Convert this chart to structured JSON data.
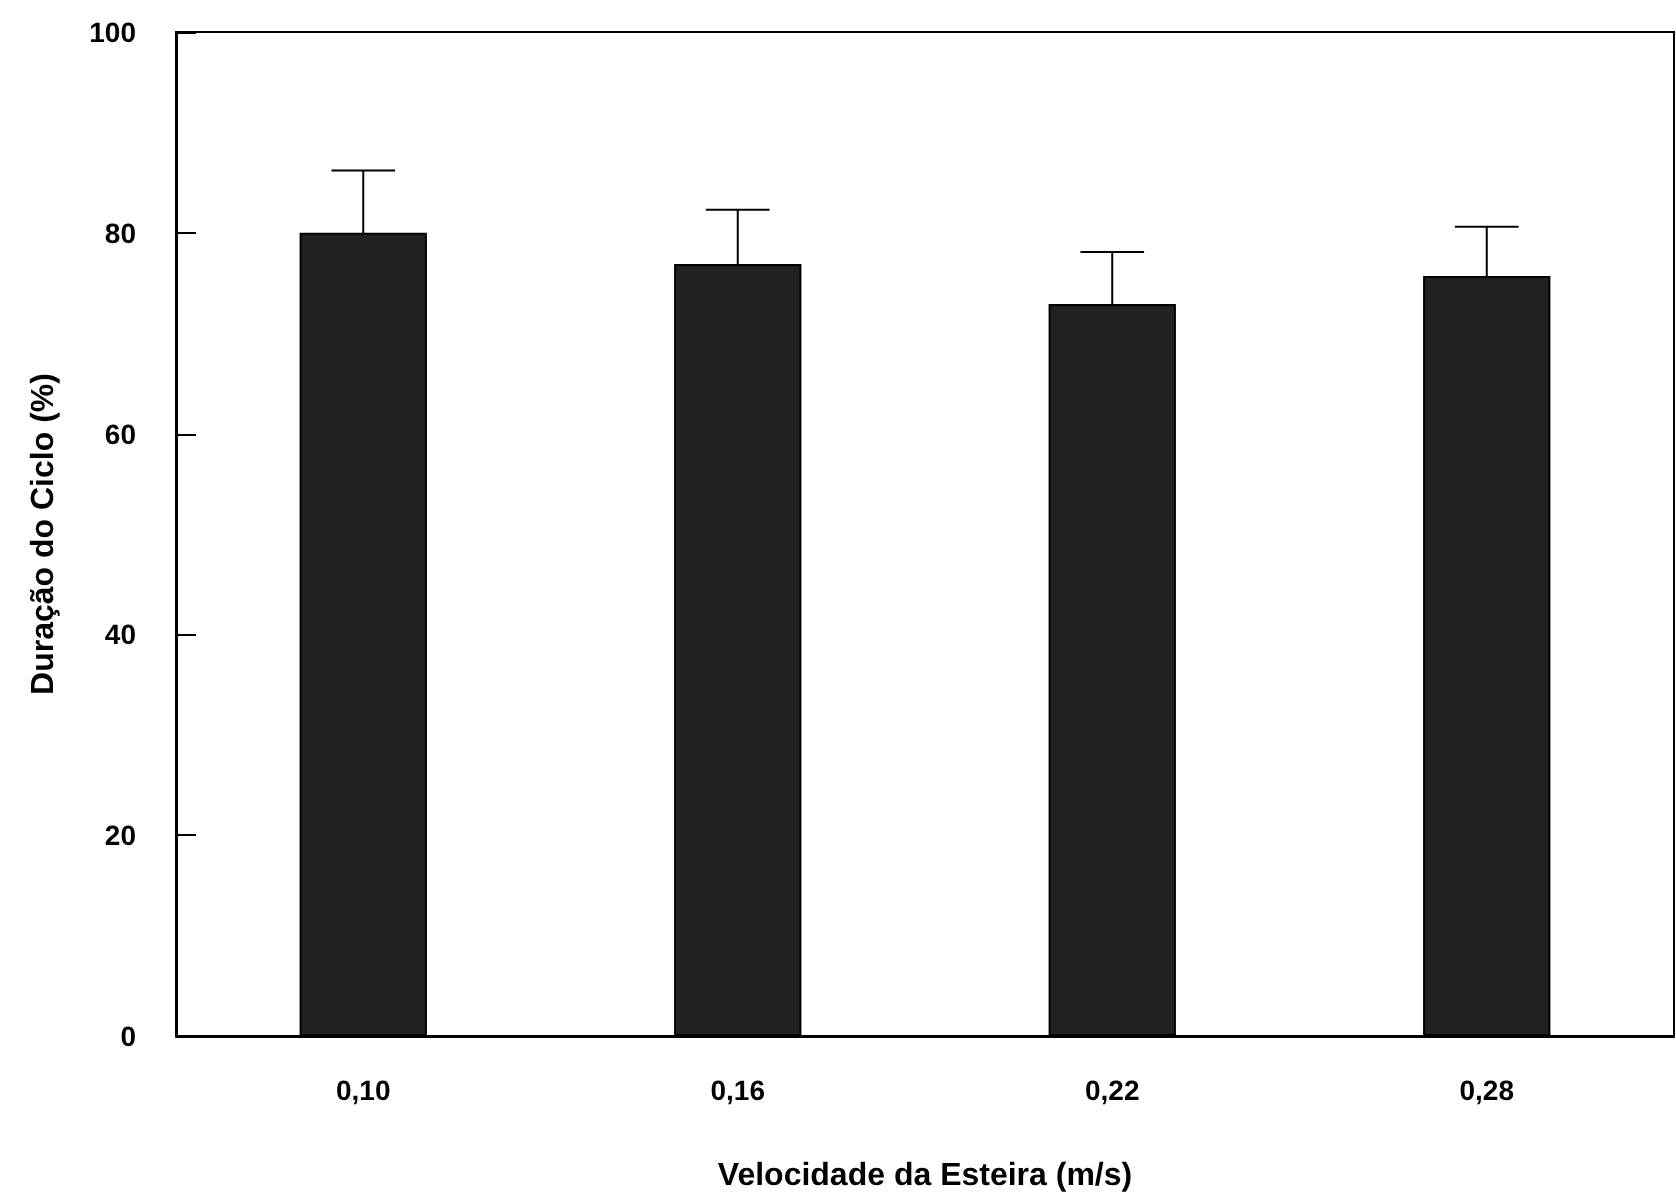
{
  "chart_data": {
    "type": "bar",
    "xlabel": "Velocidade da Esteira (m/s)",
    "ylabel": "Duração do Ciclo (%)",
    "categories": [
      "0,10",
      "0,16",
      "0,22",
      "0,28"
    ],
    "values": [
      80,
      76.9,
      72.9,
      75.7
    ],
    "errors": [
      6.2,
      5.4,
      5.2,
      4.9
    ],
    "color": "#222222",
    "ylim": [
      0,
      100
    ],
    "yticks": [
      0,
      20,
      40,
      60,
      80,
      100
    ],
    "grid": false
  }
}
